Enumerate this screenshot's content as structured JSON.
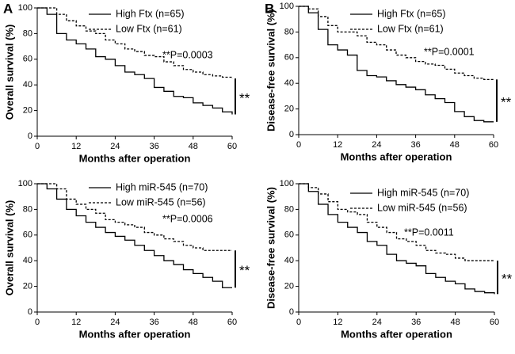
{
  "chart_data": [
    {
      "type": "line",
      "step": true,
      "panel_label": "A",
      "ylabel": "Overall survival (%)",
      "xlabel": "Months after operation",
      "annotation": "**P=0.0003",
      "significance_mark": "**",
      "legend": "upper right",
      "xlim": [
        0,
        60
      ],
      "xticks": [
        0,
        12,
        24,
        36,
        48,
        60
      ],
      "ylim": [
        0,
        100
      ],
      "yticks": [
        0,
        20,
        40,
        60,
        80,
        100
      ],
      "x": [
        0,
        3,
        6,
        9,
        12,
        15,
        18,
        21,
        24,
        27,
        30,
        33,
        36,
        39,
        42,
        45,
        48,
        51,
        54,
        57,
        60
      ],
      "series": [
        {
          "name": "High Ftx (n=65)",
          "color": "#000000",
          "linestyle": "solid",
          "values": [
            100,
            95,
            80,
            75,
            72,
            68,
            62,
            60,
            55,
            50,
            48,
            45,
            38,
            35,
            31,
            30,
            26,
            24,
            22,
            19,
            17
          ]
        },
        {
          "name": "Low Ftx (n=61)",
          "color": "#000000",
          "linestyle": "dashed",
          "values": [
            100,
            100,
            95,
            90,
            86,
            82,
            80,
            75,
            72,
            68,
            66,
            63,
            62,
            58,
            55,
            52,
            50,
            48,
            47,
            46,
            45
          ]
        }
      ]
    },
    {
      "type": "line",
      "step": true,
      "panel_label": "B",
      "ylabel": "Disease-free survival (%)",
      "xlabel": "Months after operation",
      "annotation": "**P=0.0001",
      "significance_mark": "**",
      "legend": "upper right",
      "xlim": [
        0,
        60
      ],
      "xticks": [
        0,
        12,
        24,
        36,
        48,
        60
      ],
      "ylim": [
        0,
        100
      ],
      "yticks": [
        0,
        20,
        40,
        60,
        80,
        100
      ],
      "x": [
        0,
        3,
        6,
        9,
        12,
        15,
        18,
        21,
        24,
        27,
        30,
        33,
        36,
        39,
        42,
        45,
        48,
        51,
        54,
        57,
        60
      ],
      "series": [
        {
          "name": "High Ftx (n=65)",
          "color": "#000000",
          "linestyle": "solid",
          "values": [
            100,
            95,
            82,
            70,
            66,
            62,
            50,
            46,
            45,
            42,
            39,
            37,
            35,
            31,
            28,
            25,
            18,
            14,
            11,
            10,
            10
          ]
        },
        {
          "name": "Low Ftx (n=61)",
          "color": "#000000",
          "linestyle": "dashed",
          "values": [
            100,
            98,
            92,
            85,
            80,
            80,
            77,
            72,
            70,
            66,
            62,
            60,
            57,
            55,
            54,
            51,
            48,
            46,
            44,
            43,
            43
          ]
        }
      ]
    },
    {
      "type": "line",
      "step": true,
      "ylabel": "Overall survival (%)",
      "xlabel": "Months after operation",
      "annotation": "**P=0.0006",
      "significance_mark": "**",
      "legend": "upper right",
      "xlim": [
        0,
        60
      ],
      "xticks": [
        0,
        12,
        24,
        36,
        48,
        60
      ],
      "ylim": [
        0,
        100
      ],
      "yticks": [
        0,
        20,
        40,
        60,
        80,
        100
      ],
      "x": [
        0,
        3,
        6,
        9,
        12,
        15,
        18,
        21,
        24,
        27,
        30,
        33,
        36,
        39,
        42,
        45,
        48,
        51,
        54,
        57,
        60
      ],
      "series": [
        {
          "name": "High miR-545 (n=70)",
          "color": "#000000",
          "linestyle": "solid",
          "values": [
            100,
            96,
            88,
            80,
            75,
            70,
            66,
            62,
            59,
            56,
            52,
            48,
            44,
            40,
            37,
            33,
            30,
            27,
            24,
            19,
            19
          ]
        },
        {
          "name": "Low miR-545 (n=56)",
          "color": "#000000",
          "linestyle": "dashed",
          "values": [
            100,
            100,
            96,
            88,
            84,
            80,
            77,
            72,
            70,
            68,
            66,
            62,
            60,
            57,
            55,
            52,
            50,
            48,
            48,
            48,
            48
          ]
        }
      ]
    },
    {
      "type": "line",
      "step": true,
      "ylabel": "Disease-free survival (%)",
      "xlabel": "Months after operation",
      "annotation": "**P=0.0011",
      "significance_mark": "**",
      "legend": "upper right",
      "xlim": [
        0,
        60
      ],
      "xticks": [
        0,
        12,
        24,
        36,
        48,
        60
      ],
      "ylim": [
        0,
        100
      ],
      "yticks": [
        0,
        20,
        40,
        60,
        80,
        100
      ],
      "x": [
        0,
        3,
        6,
        9,
        12,
        15,
        18,
        21,
        24,
        27,
        30,
        33,
        36,
        39,
        42,
        45,
        48,
        51,
        54,
        57,
        60
      ],
      "series": [
        {
          "name": "High miR-545 (n=70)",
          "color": "#000000",
          "linestyle": "solid",
          "values": [
            100,
            94,
            84,
            76,
            70,
            66,
            62,
            55,
            52,
            45,
            40,
            38,
            36,
            30,
            27,
            24,
            22,
            18,
            16,
            15,
            14
          ]
        },
        {
          "name": "Low miR-545 (n=56)",
          "color": "#000000",
          "linestyle": "dashed",
          "values": [
            100,
            97,
            92,
            86,
            80,
            78,
            76,
            70,
            66,
            62,
            57,
            55,
            52,
            48,
            46,
            45,
            42,
            40,
            40,
            40,
            40
          ]
        }
      ]
    }
  ]
}
